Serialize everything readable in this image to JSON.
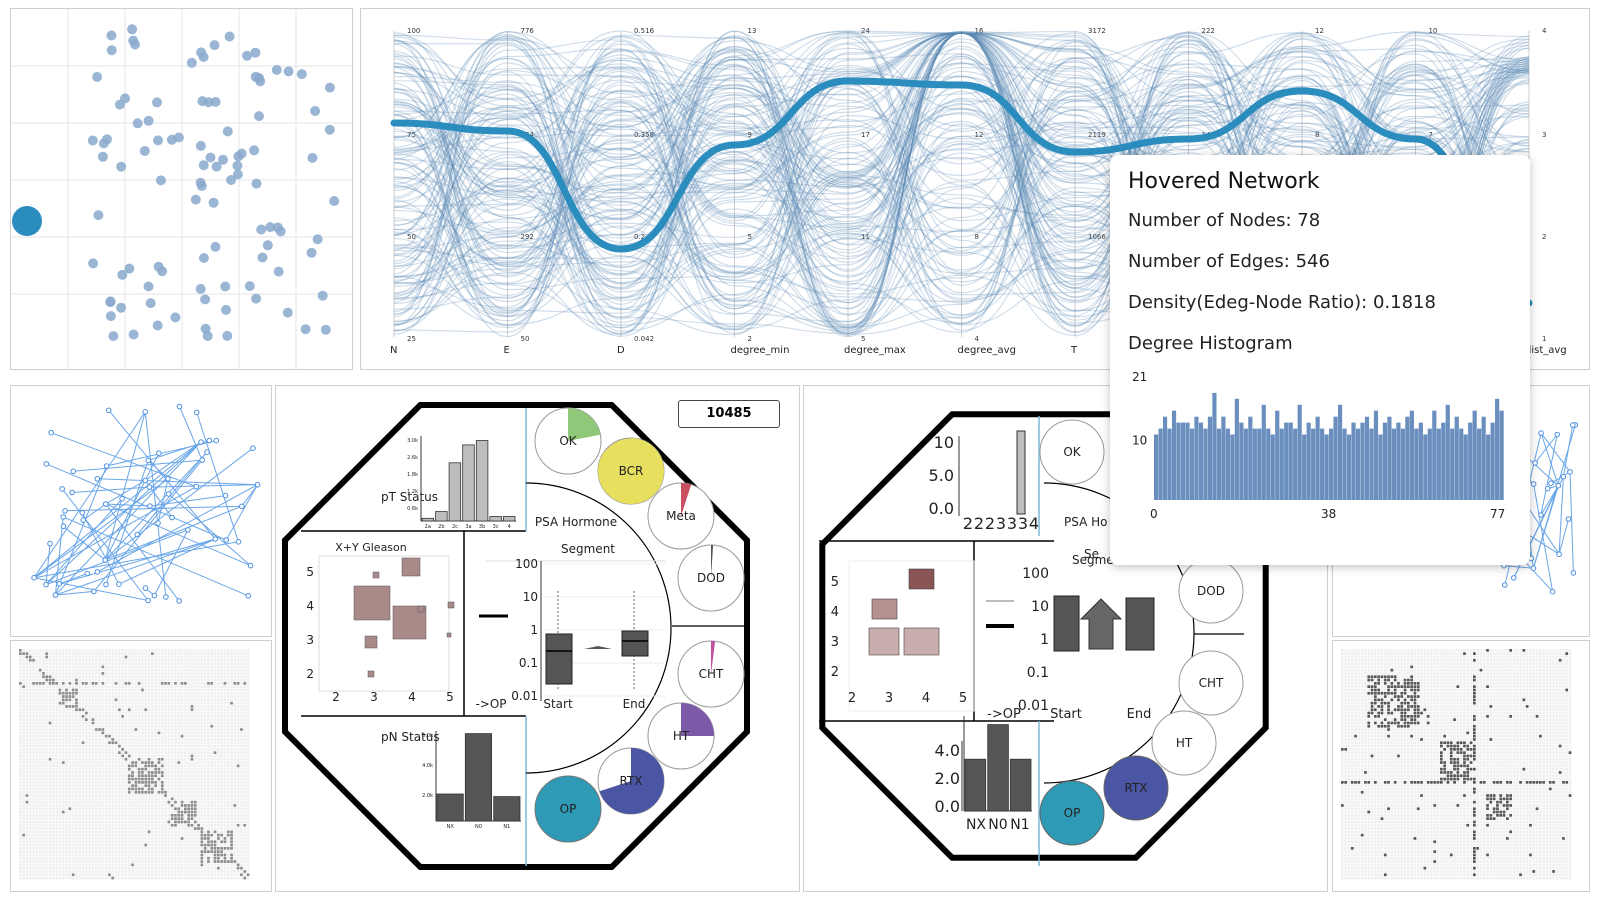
{
  "parallel": {
    "axes": [
      {
        "name": "N",
        "ticks": [
          "100",
          "75",
          "50",
          "25"
        ]
      },
      {
        "name": "E",
        "ticks": [
          "776",
          "534",
          "292",
          "50"
        ]
      },
      {
        "name": "D",
        "ticks": [
          "0.516",
          "0.358",
          "0.2",
          "0.042"
        ]
      },
      {
        "name": "degree_min",
        "ticks": [
          "13",
          "9",
          "5",
          "2"
        ]
      },
      {
        "name": "degree_max",
        "ticks": [
          "24",
          "17",
          "11",
          "5"
        ]
      },
      {
        "name": "degree_avg",
        "ticks": [
          "16",
          "12",
          "8",
          "4"
        ]
      },
      {
        "name": "T",
        "ticks": [
          "3172",
          "2119",
          "1066",
          ""
        ]
      },
      {
        "name": "",
        "ticks": [
          "222",
          "149",
          "",
          ""
        ]
      },
      {
        "name": "",
        "ticks": [
          "12",
          "8",
          "",
          ""
        ]
      },
      {
        "name": "",
        "ticks": [
          "10",
          "7",
          "",
          ""
        ]
      },
      {
        "name": "dist_avg",
        "ticks": [
          "4",
          "3",
          "2",
          "1"
        ]
      }
    ]
  },
  "tooltip": {
    "title": "Hovered Network",
    "nodes_label": "Number of Nodes: 78",
    "edges_label": "Number of Edges: 546",
    "density_label": "Density(Edeg-Node Ratio): 0.1818",
    "hist_label": "Degree Histogram",
    "hist_y_ticks": [
      "21",
      "10"
    ],
    "hist_x_ticks": [
      "0",
      "38",
      "77"
    ],
    "hist_values": [
      11,
      12,
      14,
      12,
      15,
      13,
      13,
      13,
      12,
      14,
      13,
      12,
      14,
      18,
      12,
      14,
      12,
      11,
      17,
      13,
      12,
      14,
      12,
      12,
      16,
      12,
      11,
      15,
      12,
      13,
      13,
      12,
      16,
      11,
      13,
      12,
      14,
      12,
      11,
      12,
      14,
      16,
      12,
      11,
      13,
      12,
      13,
      14,
      12,
      15,
      11,
      13,
      14,
      12,
      13,
      12,
      14,
      15,
      12,
      13,
      11,
      12,
      15,
      12,
      13,
      16,
      12,
      14,
      12,
      11,
      13,
      15,
      12,
      14,
      11,
      13,
      17,
      15
    ]
  },
  "dashboard": {
    "badge": "10485",
    "left": {
      "pt_status": "pT Status",
      "pt_yticks": [
        "3.0k",
        "2.6k",
        "1.8k",
        "1.2k",
        "0.6k"
      ],
      "pt_xticks": [
        "2a",
        "2b",
        "2c",
        "3a",
        "3b",
        "3c",
        "4"
      ],
      "pt_values": [
        120,
        420,
        2600,
        3400,
        3600,
        200,
        200
      ],
      "gleason": "X+Y Gleason",
      "gleason_yticks": [
        "5",
        "4",
        "3",
        "2"
      ],
      "gleason_xticks": [
        "2",
        "3",
        "4",
        "5"
      ],
      "psa_title": "PSA Hormone",
      "segment": "Segment",
      "psa_yticks": [
        "100",
        "10",
        "1",
        "0.1",
        "0.01"
      ],
      "psa_xticks": [
        "Start",
        "End"
      ],
      "op_label": "->OP",
      "pn_status": "pN Status",
      "pn_yticks": [
        "6.0k",
        "4.0k",
        "2.0k"
      ],
      "pn_xticks": [
        "NX",
        "N0",
        "N1"
      ],
      "pn_values": [
        2100,
        6800,
        1900
      ],
      "circles": [
        "OK",
        "BCR",
        "Meta",
        "DOD",
        "CHT",
        "HT",
        "RTX",
        "OP"
      ]
    },
    "right": {
      "pt_yticks": [
        "10",
        "5.0",
        "0.0"
      ],
      "pt_xticks": [
        "2",
        "2",
        "2",
        "3",
        "3",
        "3",
        "4"
      ],
      "pn_yticks": [
        "4.0",
        "2.0",
        "0.0"
      ],
      "pn_xticks": [
        "NX",
        "N0",
        "N1"
      ],
      "pn_values": [
        3,
        5,
        3
      ],
      "psa_title": "PSA Ho",
      "segment": "Segment",
      "segment_ghost": "Se",
      "psa_yticks": [
        "100",
        "10",
        "1",
        "0.1",
        "0.01"
      ],
      "psa_xticks": [
        "Start",
        "End"
      ],
      "op_label": "->OP",
      "gleason_yticks": [
        "5",
        "4",
        "3",
        "2"
      ],
      "gleason_xticks": [
        "2",
        "3",
        "4",
        "5"
      ],
      "circles": [
        "OK",
        "DOD",
        "CHT",
        "HT",
        "RTX",
        "OP"
      ]
    }
  },
  "colors": {
    "accent": "#2b8cbe",
    "dots": "#8aa9cc",
    "bar": "#6a8fbf",
    "yellow": "#e6e05e",
    "green": "#8fc879",
    "purple": "#7d5aa8",
    "rtx": "#4a55a3",
    "op": "#2f9ab5",
    "gleason": "#a88a88"
  }
}
